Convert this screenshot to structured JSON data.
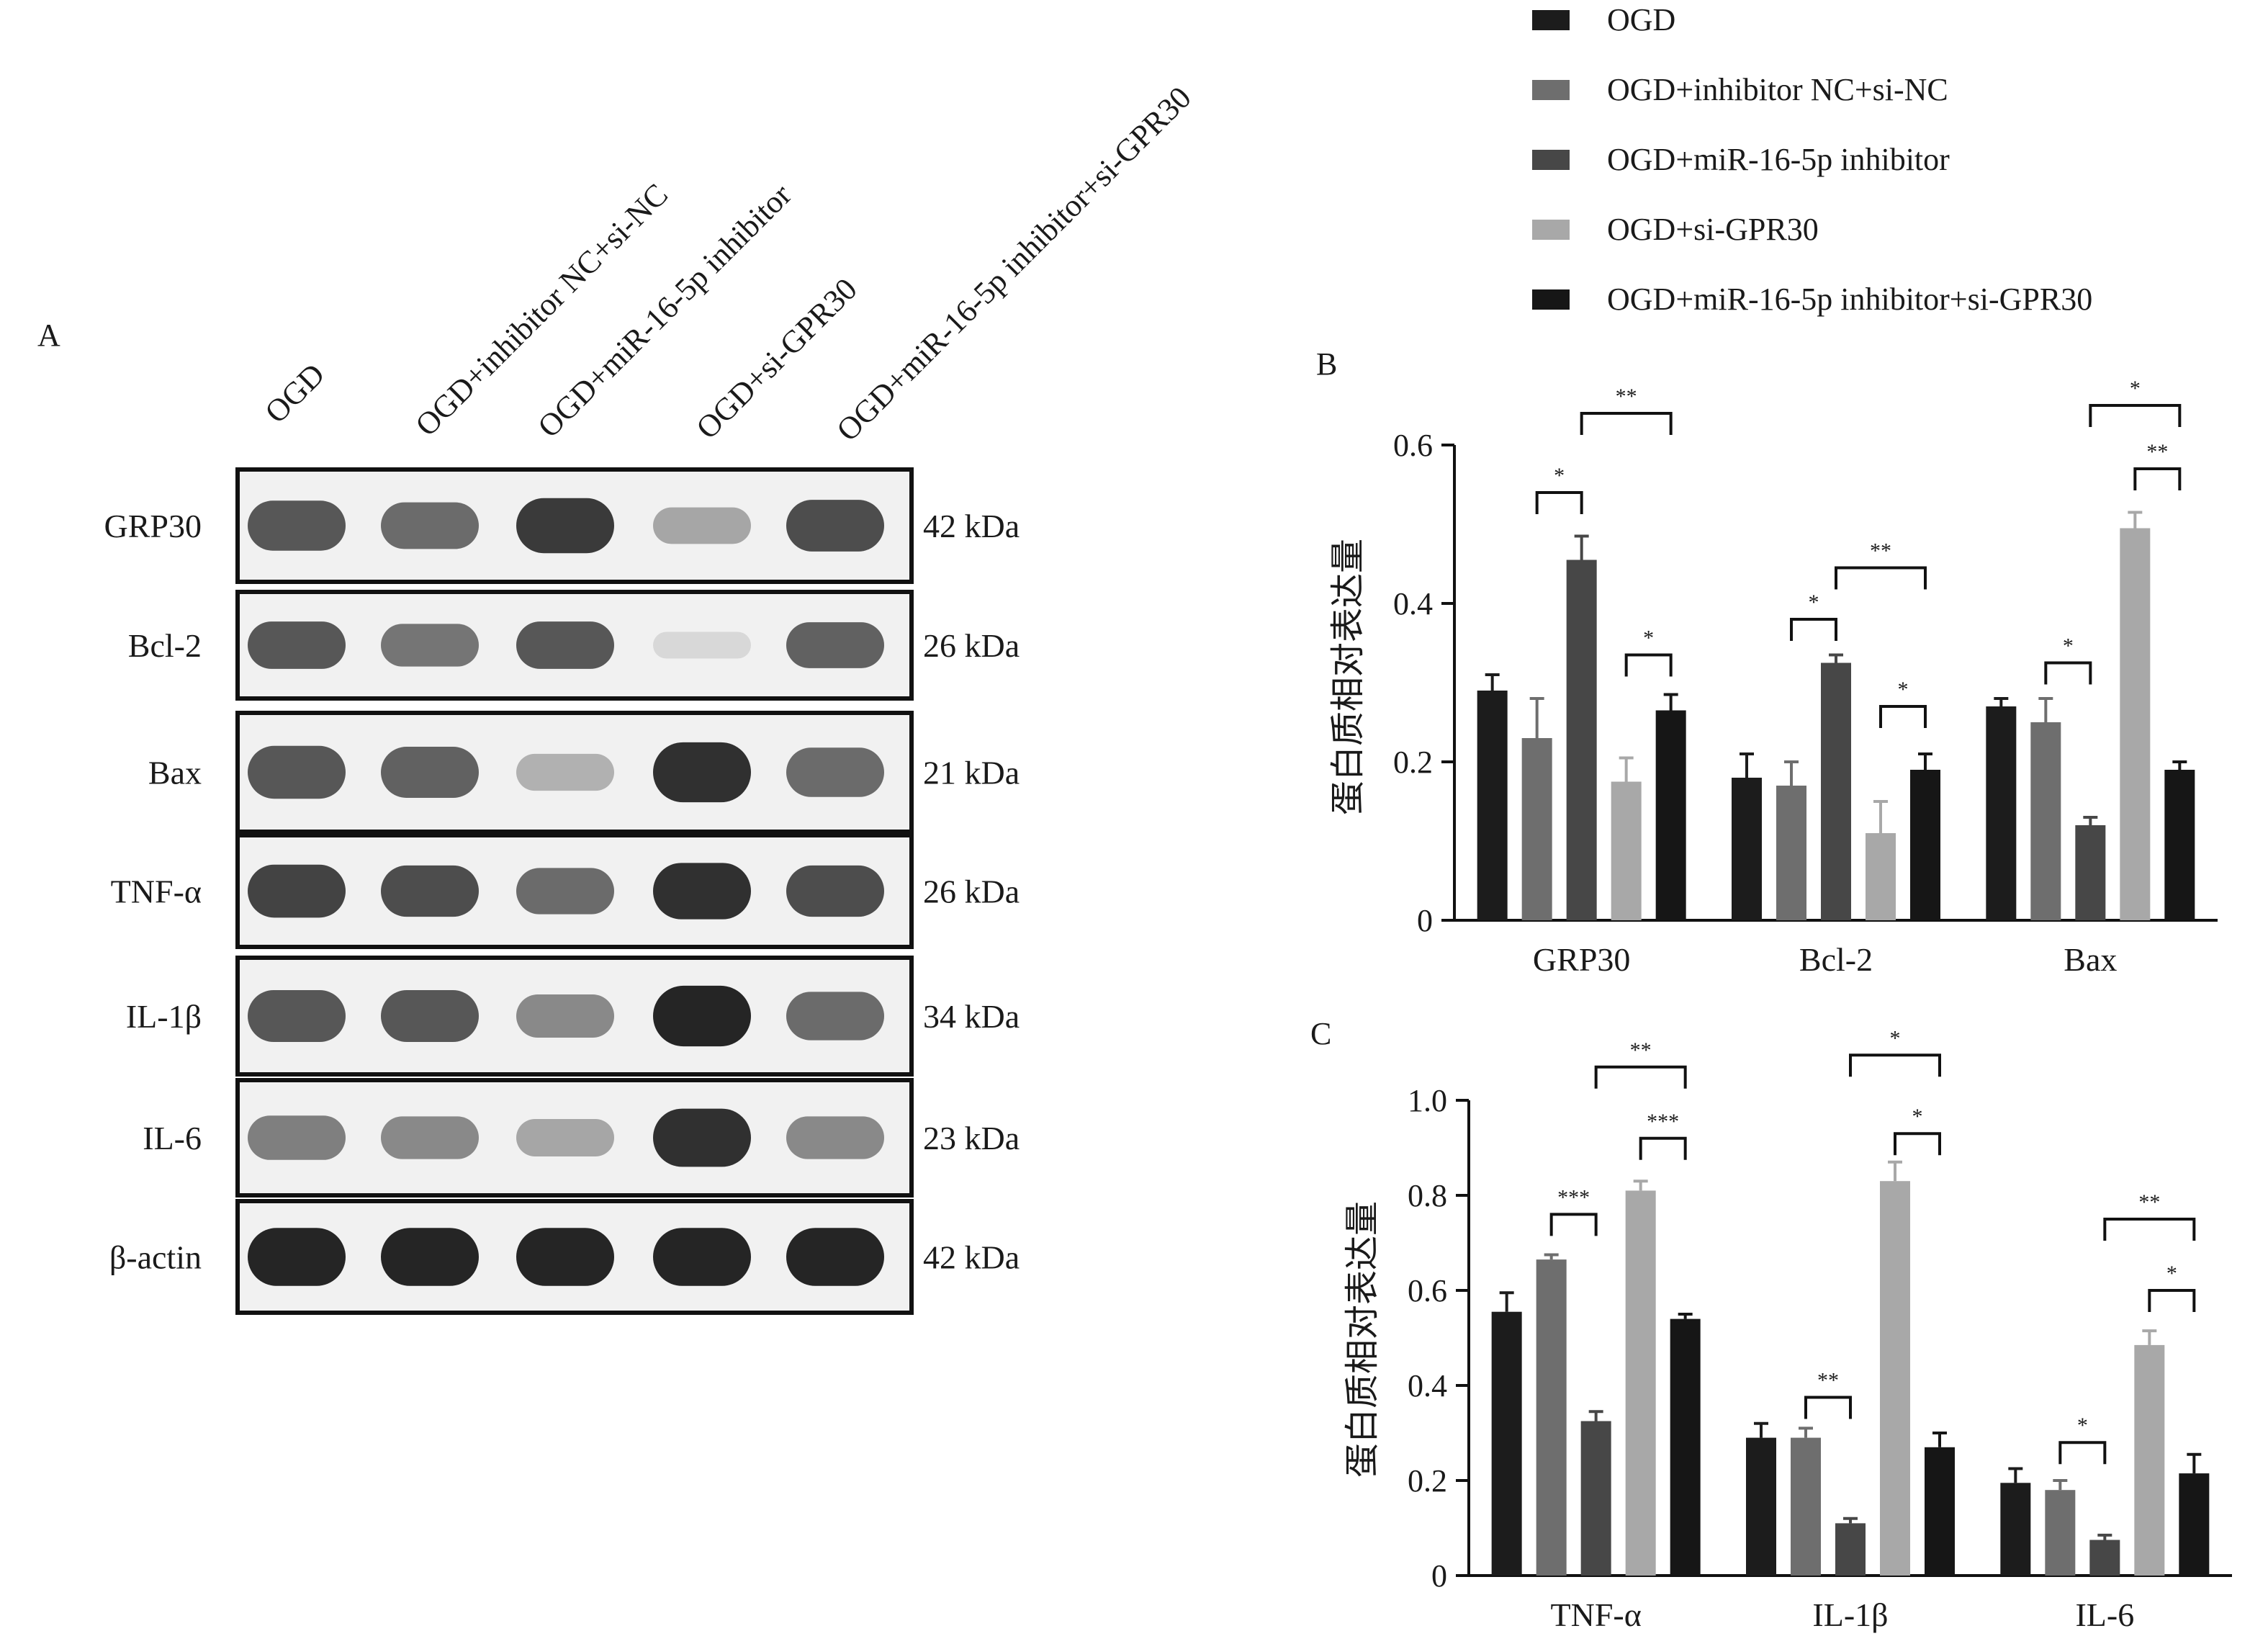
{
  "colors": {
    "OGD": "#1c1c1c",
    "OGD+inhibitor NC+si-NC": "#6e6e6e",
    "OGD+miR-16-5p inhibitor": "#474747",
    "OGD+si-GPR30": "#a8a8a8",
    "OGD+miR-16-5p inhibitor+si-GPR30": "#161616"
  },
  "legend": {
    "items": [
      "OGD",
      "OGD+inhibitor NC+si-NC",
      "OGD+miR-16-5p inhibitor",
      "OGD+si-GPR30",
      "OGD+miR-16-5p inhibitor+si-GPR30"
    ]
  },
  "blot": {
    "panel_label": "A",
    "lane_labels": [
      "OGD",
      "OGD+inhibitor NC+si-NC",
      "OGD+miR-16-5p inhibitor",
      "OGD+si-GPR30",
      "OGD+miR-16-5p inhibitor+si-GPR30"
    ],
    "rows": [
      {
        "protein": "GRP30",
        "kda": "42 kDa",
        "intensity": [
          0.75,
          0.65,
          0.9,
          0.35,
          0.8
        ]
      },
      {
        "protein": "Bcl-2",
        "kda": "26 kDa",
        "intensity": [
          0.75,
          0.6,
          0.75,
          0.1,
          0.7
        ]
      },
      {
        "protein": "Bax",
        "kda": "21 kDa",
        "intensity": [
          0.75,
          0.7,
          0.3,
          0.95,
          0.65
        ]
      },
      {
        "protein": "TNF-α",
        "kda": "26 kDa",
        "intensity": [
          0.85,
          0.8,
          0.65,
          0.95,
          0.8
        ]
      },
      {
        "protein": "IL-1β",
        "kda": "34 kDa",
        "intensity": [
          0.75,
          0.75,
          0.5,
          1.0,
          0.65
        ]
      },
      {
        "protein": "IL-6",
        "kda": "23 kDa",
        "intensity": [
          0.55,
          0.5,
          0.35,
          0.95,
          0.5
        ]
      },
      {
        "protein": "β-actin",
        "kda": "42 kDa",
        "intensity": [
          1.0,
          1.0,
          1.0,
          1.0,
          1.0
        ]
      }
    ]
  },
  "chart_data": [
    {
      "type": "bar",
      "panel_label": "B",
      "ylabel": "蛋白质相对表达量",
      "ylim": [
        0,
        0.6
      ],
      "yticks": [
        "0",
        "0.2",
        "0.4",
        "0.6"
      ],
      "categories": [
        "GRP30",
        "Bcl-2",
        "Bax"
      ],
      "series": [
        {
          "name": "OGD",
          "values": [
            0.29,
            0.18,
            0.27
          ],
          "errors": [
            0.02,
            0.03,
            0.01
          ]
        },
        {
          "name": "OGD+inhibitor NC+si-NC",
          "values": [
            0.23,
            0.17,
            0.25
          ],
          "errors": [
            0.05,
            0.03,
            0.03
          ]
        },
        {
          "name": "OGD+miR-16-5p inhibitor",
          "values": [
            0.455,
            0.325,
            0.12
          ],
          "errors": [
            0.03,
            0.01,
            0.01
          ]
        },
        {
          "name": "OGD+si-GPR30",
          "values": [
            0.175,
            0.11,
            0.495
          ],
          "errors": [
            0.03,
            0.04,
            0.02
          ]
        },
        {
          "name": "OGD+miR-16-5p inhibitor+si-GPR30",
          "values": [
            0.265,
            0.19,
            0.19
          ],
          "errors": [
            0.02,
            0.02,
            0.01
          ]
        }
      ],
      "annotations": [
        {
          "group": 0,
          "from": 1,
          "to": 2,
          "label": "*",
          "y": 0.54
        },
        {
          "group": 0,
          "from": 2,
          "to": 4,
          "label": "**",
          "y": 0.64
        },
        {
          "group": 0,
          "from": 3,
          "to": 4,
          "label": "*",
          "y": 0.335
        },
        {
          "group": 1,
          "from": 1,
          "to": 2,
          "label": "*",
          "y": 0.38
        },
        {
          "group": 1,
          "from": 2,
          "to": 4,
          "label": "**",
          "y": 0.445
        },
        {
          "group": 1,
          "from": 3,
          "to": 4,
          "label": "*",
          "y": 0.27
        },
        {
          "group": 2,
          "from": 1,
          "to": 2,
          "label": "*",
          "y": 0.325
        },
        {
          "group": 2,
          "from": 2,
          "to": 4,
          "label": "*",
          "y": 0.65
        },
        {
          "group": 2,
          "from": 3,
          "to": 4,
          "label": "**",
          "y": 0.57
        }
      ]
    },
    {
      "type": "bar",
      "panel_label": "C",
      "ylabel": "蛋白质相对表达量",
      "ylim": [
        0,
        1.0
      ],
      "yticks": [
        "0",
        "0.2",
        "0.4",
        "0.6",
        "0.8",
        "1.0"
      ],
      "categories": [
        "TNF-α",
        "IL-1β",
        "IL-6"
      ],
      "series": [
        {
          "name": "OGD",
          "values": [
            0.555,
            0.29,
            0.195
          ],
          "errors": [
            0.04,
            0.03,
            0.03
          ]
        },
        {
          "name": "OGD+inhibitor NC+si-NC",
          "values": [
            0.665,
            0.29,
            0.18
          ],
          "errors": [
            0.01,
            0.02,
            0.02
          ]
        },
        {
          "name": "OGD+miR-16-5p inhibitor",
          "values": [
            0.325,
            0.11,
            0.075
          ],
          "errors": [
            0.02,
            0.01,
            0.01
          ]
        },
        {
          "name": "OGD+si-GPR30",
          "values": [
            0.81,
            0.83,
            0.485
          ],
          "errors": [
            0.02,
            0.04,
            0.03
          ]
        },
        {
          "name": "OGD+miR-16-5p inhibitor+si-GPR30",
          "values": [
            0.54,
            0.27,
            0.215
          ],
          "errors": [
            0.01,
            0.03,
            0.04
          ]
        }
      ],
      "annotations": [
        {
          "group": 0,
          "from": 1,
          "to": 2,
          "label": "***",
          "y": 0.76
        },
        {
          "group": 0,
          "from": 2,
          "to": 4,
          "label": "**",
          "y": 1.07
        },
        {
          "group": 0,
          "from": 3,
          "to": 4,
          "label": "***",
          "y": 0.92
        },
        {
          "group": 1,
          "from": 1,
          "to": 2,
          "label": "**",
          "y": 0.375
        },
        {
          "group": 1,
          "from": 2,
          "to": 4,
          "label": "*",
          "y": 1.095
        },
        {
          "group": 1,
          "from": 3,
          "to": 4,
          "label": "*",
          "y": 0.93
        },
        {
          "group": 2,
          "from": 1,
          "to": 2,
          "label": "*",
          "y": 0.28
        },
        {
          "group": 2,
          "from": 2,
          "to": 4,
          "label": "**",
          "y": 0.75
        },
        {
          "group": 2,
          "from": 3,
          "to": 4,
          "label": "*",
          "y": 0.6
        }
      ]
    }
  ]
}
